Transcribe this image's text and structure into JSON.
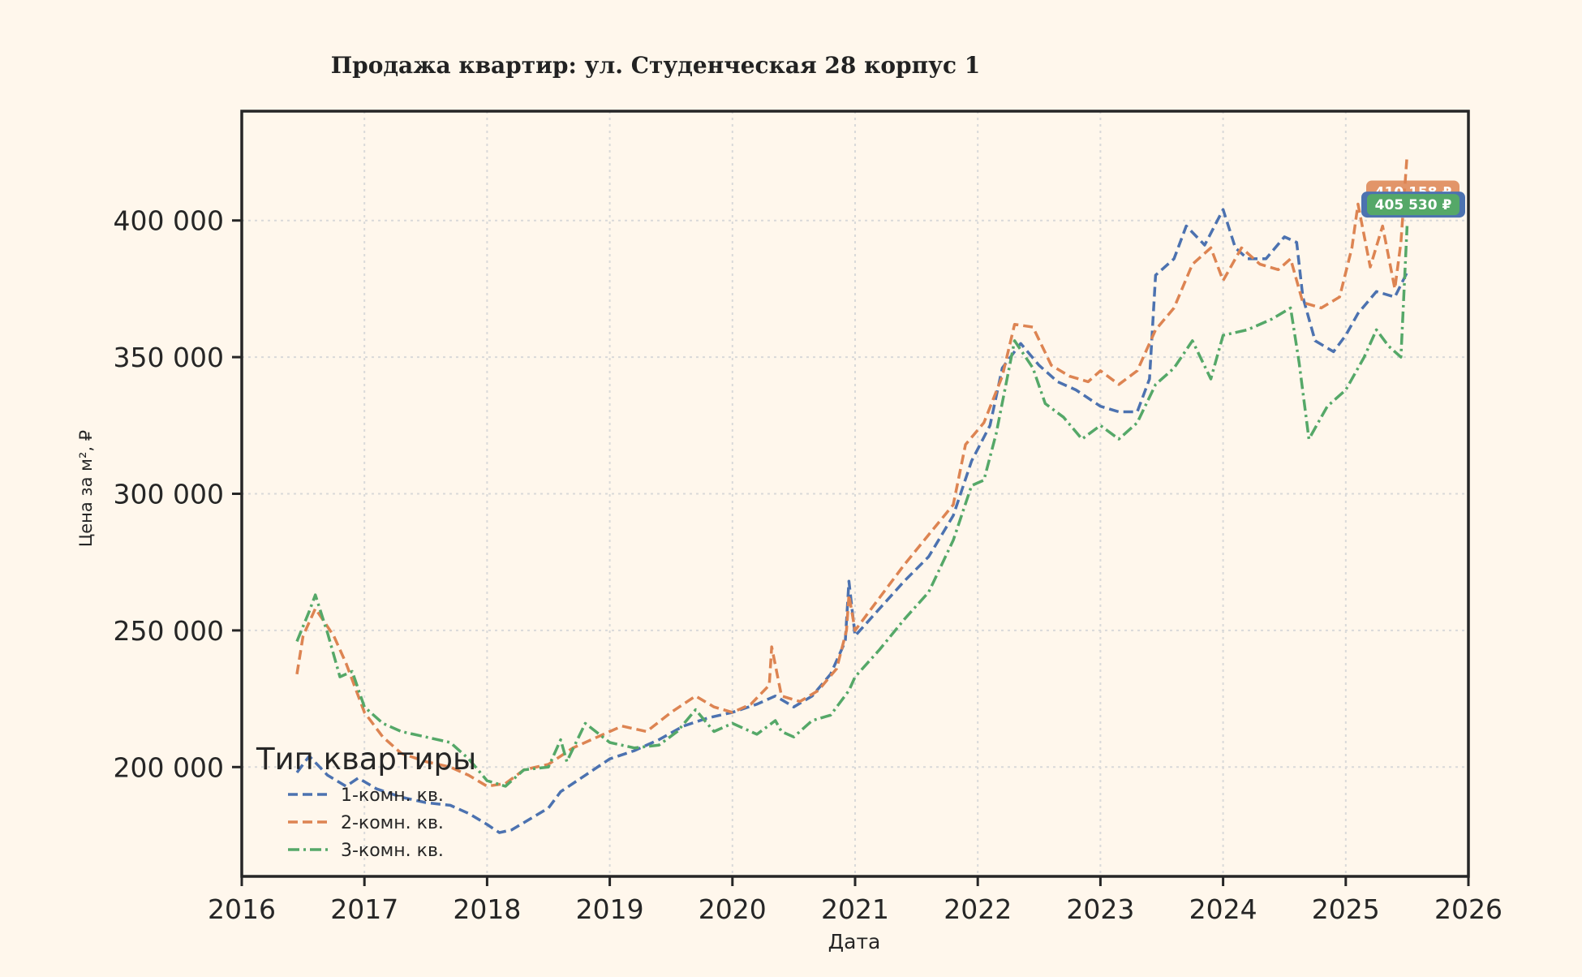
{
  "chart_data": {
    "type": "line",
    "title": "Продажа квартир: ул. Студенческая 28 корпус 1",
    "xlabel": "Дата",
    "ylabel": "Цена за м², ₽",
    "xlim": [
      2016,
      2026
    ],
    "ylim": [
      160000,
      440000
    ],
    "x_ticks": [
      2016,
      2017,
      2018,
      2019,
      2020,
      2021,
      2022,
      2023,
      2024,
      2025,
      2026
    ],
    "y_ticks": [
      200000,
      250000,
      300000,
      350000,
      400000
    ],
    "y_tick_labels": [
      "200 000",
      "250 000",
      "300 000",
      "350 000",
      "400 000"
    ],
    "grid": true,
    "legend": {
      "title": "Тип квартиры",
      "placement": "lower-left",
      "entries": [
        "1-комн. кв.",
        "2-комн. кв.",
        "3-комн. кв."
      ]
    },
    "series": [
      {
        "name": "1-комн. кв.",
        "color": "#4c72b0",
        "dash": "dashed",
        "points": [
          [
            2016.45,
            198000
          ],
          [
            2016.55,
            204000
          ],
          [
            2016.7,
            197000
          ],
          [
            2016.85,
            193000
          ],
          [
            2016.95,
            196000
          ],
          [
            2017.1,
            192000
          ],
          [
            2017.3,
            189000
          ],
          [
            2017.5,
            187000
          ],
          [
            2017.7,
            186000
          ],
          [
            2017.85,
            183000
          ],
          [
            2018.0,
            179000
          ],
          [
            2018.1,
            176000
          ],
          [
            2018.2,
            177000
          ],
          [
            2018.35,
            181000
          ],
          [
            2018.5,
            185000
          ],
          [
            2018.6,
            191000
          ],
          [
            2018.8,
            197000
          ],
          [
            2019.0,
            203000
          ],
          [
            2019.2,
            206000
          ],
          [
            2019.4,
            210000
          ],
          [
            2019.6,
            215000
          ],
          [
            2019.8,
            218000
          ],
          [
            2020.0,
            220000
          ],
          [
            2020.2,
            223000
          ],
          [
            2020.35,
            226000
          ],
          [
            2020.5,
            222000
          ],
          [
            2020.65,
            226000
          ],
          [
            2020.8,
            234000
          ],
          [
            2020.92,
            246000
          ],
          [
            2020.95,
            268000
          ],
          [
            2021.0,
            248000
          ],
          [
            2021.2,
            258000
          ],
          [
            2021.4,
            268000
          ],
          [
            2021.6,
            277000
          ],
          [
            2021.8,
            292000
          ],
          [
            2021.95,
            312000
          ],
          [
            2022.1,
            325000
          ],
          [
            2022.2,
            346000
          ],
          [
            2022.35,
            355000
          ],
          [
            2022.5,
            347000
          ],
          [
            2022.65,
            341000
          ],
          [
            2022.8,
            338000
          ],
          [
            2023.0,
            332000
          ],
          [
            2023.15,
            330000
          ],
          [
            2023.3,
            330000
          ],
          [
            2023.4,
            342000
          ],
          [
            2023.45,
            380000
          ],
          [
            2023.6,
            386000
          ],
          [
            2023.7,
            398000
          ],
          [
            2023.85,
            391000
          ],
          [
            2024.0,
            404000
          ],
          [
            2024.1,
            390000
          ],
          [
            2024.2,
            386000
          ],
          [
            2024.35,
            386000
          ],
          [
            2024.5,
            394000
          ],
          [
            2024.6,
            392000
          ],
          [
            2024.65,
            372000
          ],
          [
            2024.75,
            356000
          ],
          [
            2024.9,
            352000
          ],
          [
            2025.0,
            358000
          ],
          [
            2025.1,
            366000
          ],
          [
            2025.25,
            374000
          ],
          [
            2025.4,
            372000
          ],
          [
            2025.5,
            381000
          ]
        ]
      },
      {
        "name": "2-комн. кв.",
        "color": "#dd8452",
        "dash": "dashed",
        "points": [
          [
            2016.45,
            234000
          ],
          [
            2016.5,
            248000
          ],
          [
            2016.6,
            258000
          ],
          [
            2016.75,
            248000
          ],
          [
            2016.85,
            238000
          ],
          [
            2017.0,
            220000
          ],
          [
            2017.15,
            211000
          ],
          [
            2017.3,
            205000
          ],
          [
            2017.5,
            202000
          ],
          [
            2017.7,
            200000
          ],
          [
            2017.85,
            197000
          ],
          [
            2018.0,
            193000
          ],
          [
            2018.15,
            194000
          ],
          [
            2018.3,
            199000
          ],
          [
            2018.5,
            201000
          ],
          [
            2018.7,
            207000
          ],
          [
            2018.9,
            211000
          ],
          [
            2019.1,
            215000
          ],
          [
            2019.3,
            213000
          ],
          [
            2019.5,
            220000
          ],
          [
            2019.7,
            226000
          ],
          [
            2019.85,
            222000
          ],
          [
            2020.0,
            220000
          ],
          [
            2020.15,
            223000
          ],
          [
            2020.3,
            230000
          ],
          [
            2020.32,
            244000
          ],
          [
            2020.4,
            226000
          ],
          [
            2020.55,
            224000
          ],
          [
            2020.7,
            228000
          ],
          [
            2020.85,
            236000
          ],
          [
            2020.93,
            250000
          ],
          [
            2020.95,
            263000
          ],
          [
            2021.0,
            250000
          ],
          [
            2021.2,
            262000
          ],
          [
            2021.4,
            274000
          ],
          [
            2021.6,
            285000
          ],
          [
            2021.8,
            296000
          ],
          [
            2021.9,
            318000
          ],
          [
            2022.05,
            326000
          ],
          [
            2022.2,
            343000
          ],
          [
            2022.3,
            362000
          ],
          [
            2022.45,
            361000
          ],
          [
            2022.6,
            347000
          ],
          [
            2022.75,
            343000
          ],
          [
            2022.9,
            341000
          ],
          [
            2023.0,
            345000
          ],
          [
            2023.15,
            340000
          ],
          [
            2023.3,
            345000
          ],
          [
            2023.45,
            360000
          ],
          [
            2023.6,
            368000
          ],
          [
            2023.75,
            384000
          ],
          [
            2023.9,
            390000
          ],
          [
            2024.0,
            378000
          ],
          [
            2024.15,
            390000
          ],
          [
            2024.3,
            384000
          ],
          [
            2024.45,
            382000
          ],
          [
            2024.55,
            386000
          ],
          [
            2024.65,
            370000
          ],
          [
            2024.8,
            368000
          ],
          [
            2024.95,
            372000
          ],
          [
            2025.05,
            390000
          ],
          [
            2025.1,
            406000
          ],
          [
            2025.2,
            383000
          ],
          [
            2025.3,
            398000
          ],
          [
            2025.4,
            375000
          ],
          [
            2025.45,
            392000
          ],
          [
            2025.5,
            424000
          ]
        ]
      },
      {
        "name": "3-комн. кв.",
        "color": "#55a868",
        "dash": "dashdot",
        "points": [
          [
            2016.45,
            246000
          ],
          [
            2016.55,
            257000
          ],
          [
            2016.6,
            263000
          ],
          [
            2016.7,
            249000
          ],
          [
            2016.8,
            233000
          ],
          [
            2016.9,
            235000
          ],
          [
            2017.0,
            222000
          ],
          [
            2017.15,
            216000
          ],
          [
            2017.3,
            213000
          ],
          [
            2017.5,
            211000
          ],
          [
            2017.7,
            209000
          ],
          [
            2017.85,
            203000
          ],
          [
            2018.0,
            195000
          ],
          [
            2018.15,
            193000
          ],
          [
            2018.3,
            199000
          ],
          [
            2018.5,
            200000
          ],
          [
            2018.6,
            210000
          ],
          [
            2018.65,
            202000
          ],
          [
            2018.8,
            216000
          ],
          [
            2019.0,
            209000
          ],
          [
            2019.2,
            207000
          ],
          [
            2019.4,
            208000
          ],
          [
            2019.55,
            213000
          ],
          [
            2019.7,
            221000
          ],
          [
            2019.85,
            213000
          ],
          [
            2020.0,
            216000
          ],
          [
            2020.2,
            212000
          ],
          [
            2020.35,
            217000
          ],
          [
            2020.4,
            213000
          ],
          [
            2020.5,
            211000
          ],
          [
            2020.65,
            217000
          ],
          [
            2020.8,
            219000
          ],
          [
            2020.95,
            228000
          ],
          [
            2021.0,
            233000
          ],
          [
            2021.2,
            243000
          ],
          [
            2021.4,
            254000
          ],
          [
            2021.6,
            264000
          ],
          [
            2021.8,
            283000
          ],
          [
            2021.95,
            303000
          ],
          [
            2022.05,
            305000
          ],
          [
            2022.15,
            322000
          ],
          [
            2022.3,
            356000
          ],
          [
            2022.45,
            346000
          ],
          [
            2022.55,
            333000
          ],
          [
            2022.7,
            328000
          ],
          [
            2022.85,
            320000
          ],
          [
            2023.0,
            325000
          ],
          [
            2023.15,
            320000
          ],
          [
            2023.3,
            326000
          ],
          [
            2023.45,
            340000
          ],
          [
            2023.6,
            346000
          ],
          [
            2023.75,
            356000
          ],
          [
            2023.9,
            342000
          ],
          [
            2024.0,
            358000
          ],
          [
            2024.2,
            360000
          ],
          [
            2024.4,
            364000
          ],
          [
            2024.55,
            368000
          ],
          [
            2024.62,
            348000
          ],
          [
            2024.7,
            320000
          ],
          [
            2024.85,
            332000
          ],
          [
            2025.0,
            338000
          ],
          [
            2025.15,
            350000
          ],
          [
            2025.25,
            360000
          ],
          [
            2025.35,
            354000
          ],
          [
            2025.45,
            350000
          ],
          [
            2025.5,
            398000
          ]
        ]
      }
    ],
    "annotations": [
      {
        "text": "410 158 ₽",
        "y": 410158,
        "series": "2-комн. кв.",
        "color": "#dd8452"
      },
      {
        "text": "405 530 ₽",
        "y": 405530,
        "series": "1-комн. кв.",
        "color": "#4c72b0",
        "inner_color": "#55a868"
      }
    ]
  }
}
